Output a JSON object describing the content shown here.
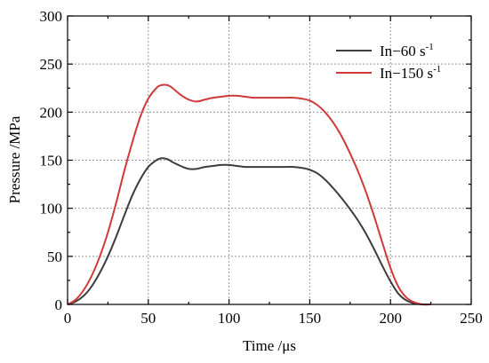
{
  "chart_data": {
    "type": "line",
    "xlabel": "Time /μs",
    "ylabel": "Pressure /MPa",
    "xlim": [
      0,
      250
    ],
    "ylim": [
      0,
      300
    ],
    "xticks": [
      "0",
      "50",
      "100",
      "150",
      "200",
      "250"
    ],
    "yticks": [
      "0",
      "50",
      "100",
      "150",
      "200",
      "250",
      "300"
    ],
    "grid": true,
    "legend_position": "top-right",
    "series": [
      {
        "name": "In−60 s",
        "superscript": "-1",
        "color": "#3d3d3d",
        "x": [
          0,
          5,
          10,
          15,
          20,
          25,
          30,
          35,
          40,
          45,
          50,
          55,
          58,
          62,
          65,
          70,
          75,
          80,
          85,
          90,
          95,
          100,
          105,
          110,
          115,
          120,
          125,
          130,
          135,
          140,
          145,
          150,
          155,
          160,
          165,
          170,
          175,
          180,
          185,
          190,
          195,
          200,
          205,
          210,
          215,
          220,
          225
        ],
        "y": [
          0,
          3,
          9,
          19,
          33,
          50,
          70,
          92,
          113,
          130,
          143,
          150,
          152,
          151,
          148,
          144,
          141,
          141,
          143,
          144,
          145,
          145,
          144,
          143,
          143,
          143,
          143,
          143,
          143,
          143,
          142,
          140,
          136,
          129,
          120,
          110,
          99,
          87,
          73,
          57,
          40,
          24,
          11,
          4,
          1,
          0,
          0
        ]
      },
      {
        "name": "In−150 s",
        "superscript": "-1",
        "color": "#d03a3a",
        "x": [
          0,
          5,
          10,
          15,
          20,
          25,
          30,
          35,
          40,
          45,
          50,
          55,
          58,
          62,
          65,
          70,
          75,
          80,
          85,
          90,
          95,
          100,
          105,
          110,
          115,
          120,
          125,
          130,
          135,
          140,
          145,
          150,
          155,
          160,
          165,
          170,
          175,
          180,
          185,
          190,
          195,
          200,
          205,
          210,
          215,
          220,
          225
        ],
        "y": [
          0,
          5,
          15,
          30,
          50,
          75,
          105,
          138,
          168,
          195,
          214,
          225,
          228,
          228,
          225,
          218,
          213,
          211,
          213,
          215,
          216,
          217,
          217,
          216,
          215,
          215,
          215,
          215,
          215,
          215,
          214,
          212,
          207,
          199,
          188,
          174,
          157,
          138,
          116,
          91,
          64,
          38,
          18,
          7,
          2,
          0,
          0
        ]
      }
    ]
  }
}
